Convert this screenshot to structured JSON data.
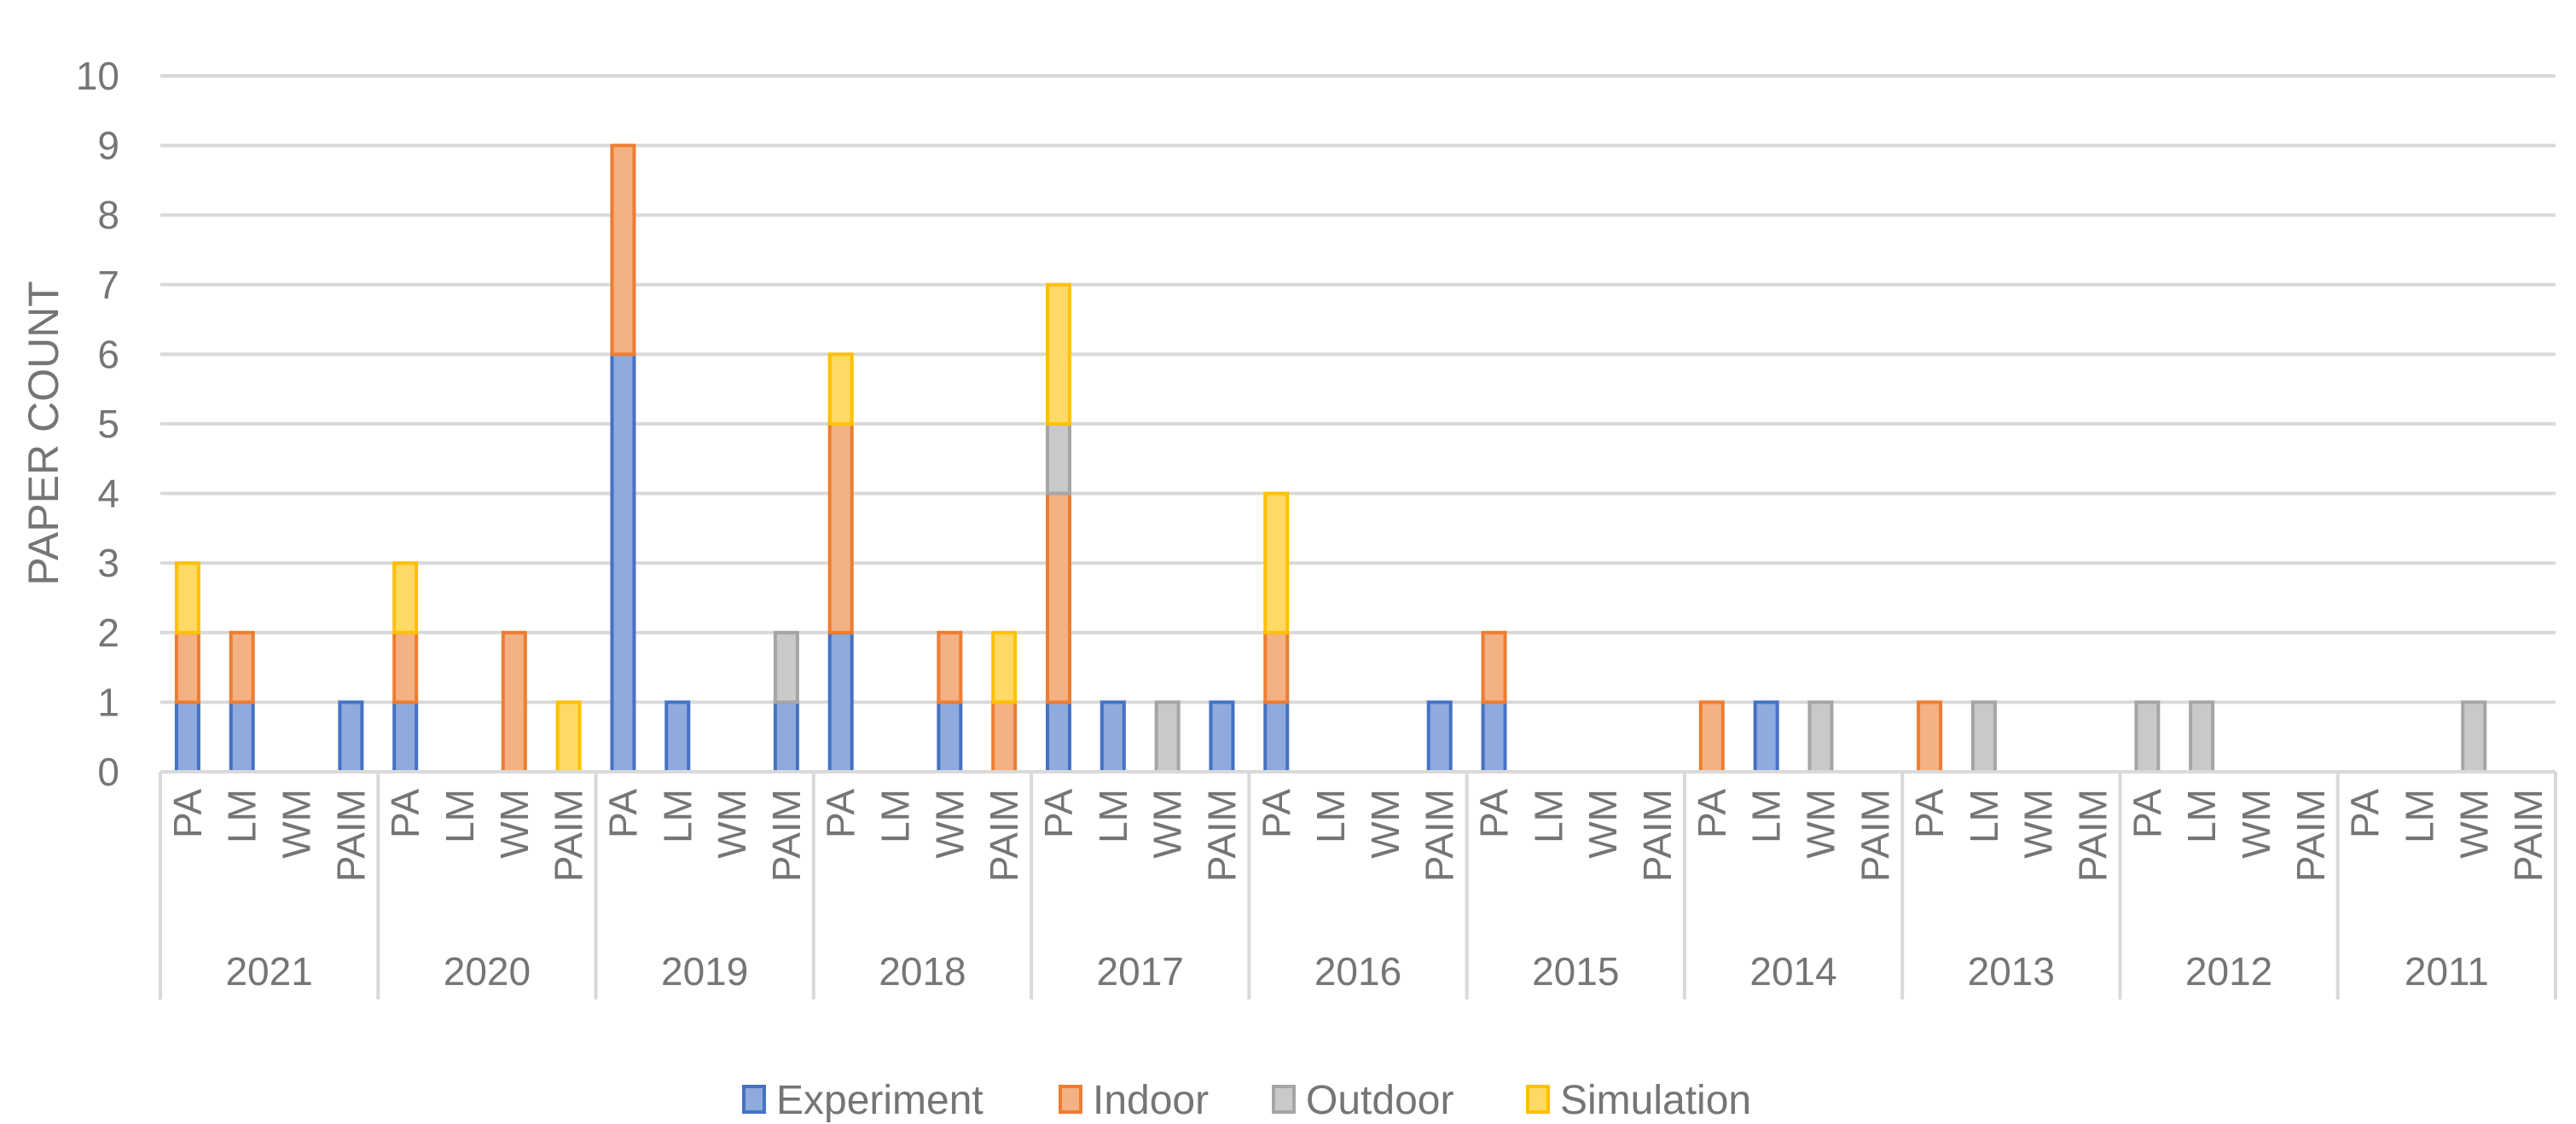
{
  "chart_data": {
    "type": "bar",
    "stacked": true,
    "ylabel": "PAPER COUNT",
    "ylim": [
      0,
      10
    ],
    "yticks": [
      0,
      1,
      2,
      3,
      4,
      5,
      6,
      7,
      8,
      9,
      10
    ],
    "grid": true,
    "legend_position": "bottom",
    "subcategories": [
      "PA",
      "LM",
      "WM",
      "PAIM"
    ],
    "groups": [
      "2021",
      "2020",
      "2019",
      "2018",
      "2017",
      "2016",
      "2015",
      "2014",
      "2013",
      "2012",
      "2011"
    ],
    "series": [
      {
        "name": "Experiment",
        "color": "#4472C4",
        "fill": "#8FAADC",
        "values": [
          [
            1,
            1,
            0,
            1
          ],
          [
            1,
            0,
            0,
            0
          ],
          [
            6,
            1,
            0,
            1
          ],
          [
            2,
            0,
            1,
            0
          ],
          [
            1,
            1,
            0,
            1
          ],
          [
            1,
            0,
            0,
            1
          ],
          [
            1,
            0,
            0,
            0
          ],
          [
            0,
            1,
            0,
            0
          ],
          [
            0,
            0,
            0,
            0
          ],
          [
            0,
            0,
            0,
            0
          ],
          [
            0,
            0,
            0,
            0
          ]
        ]
      },
      {
        "name": "Indoor",
        "color": "#ED7D31",
        "fill": "#F4B183",
        "values": [
          [
            1,
            1,
            0,
            0
          ],
          [
            1,
            0,
            2,
            0
          ],
          [
            3,
            0,
            0,
            0
          ],
          [
            3,
            0,
            1,
            1
          ],
          [
            3,
            0,
            0,
            0
          ],
          [
            1,
            0,
            0,
            0
          ],
          [
            1,
            0,
            0,
            0
          ],
          [
            1,
            0,
            0,
            0
          ],
          [
            1,
            0,
            0,
            0
          ],
          [
            0,
            0,
            0,
            0
          ],
          [
            0,
            0,
            0,
            0
          ]
        ]
      },
      {
        "name": "Outdoor",
        "color": "#A5A5A5",
        "fill": "#C9C9C9",
        "values": [
          [
            0,
            0,
            0,
            0
          ],
          [
            0,
            0,
            0,
            0
          ],
          [
            0,
            0,
            0,
            1
          ],
          [
            0,
            0,
            0,
            0
          ],
          [
            1,
            0,
            1,
            0
          ],
          [
            0,
            0,
            0,
            0
          ],
          [
            0,
            0,
            0,
            0
          ],
          [
            0,
            0,
            1,
            0
          ],
          [
            0,
            1,
            0,
            0
          ],
          [
            1,
            1,
            0,
            0
          ],
          [
            0,
            0,
            1,
            0
          ]
        ]
      },
      {
        "name": "Simulation",
        "color": "#FFC000",
        "fill": "#FFD966",
        "values": [
          [
            1,
            0,
            0,
            0
          ],
          [
            1,
            0,
            0,
            1
          ],
          [
            0,
            0,
            0,
            0
          ],
          [
            1,
            0,
            0,
            1
          ],
          [
            2,
            0,
            0,
            0
          ],
          [
            2,
            0,
            0,
            0
          ],
          [
            0,
            0,
            0,
            0
          ],
          [
            0,
            0,
            0,
            0
          ],
          [
            0,
            0,
            0,
            0
          ],
          [
            0,
            0,
            0,
            0
          ],
          [
            0,
            0,
            0,
            0
          ]
        ]
      }
    ]
  }
}
